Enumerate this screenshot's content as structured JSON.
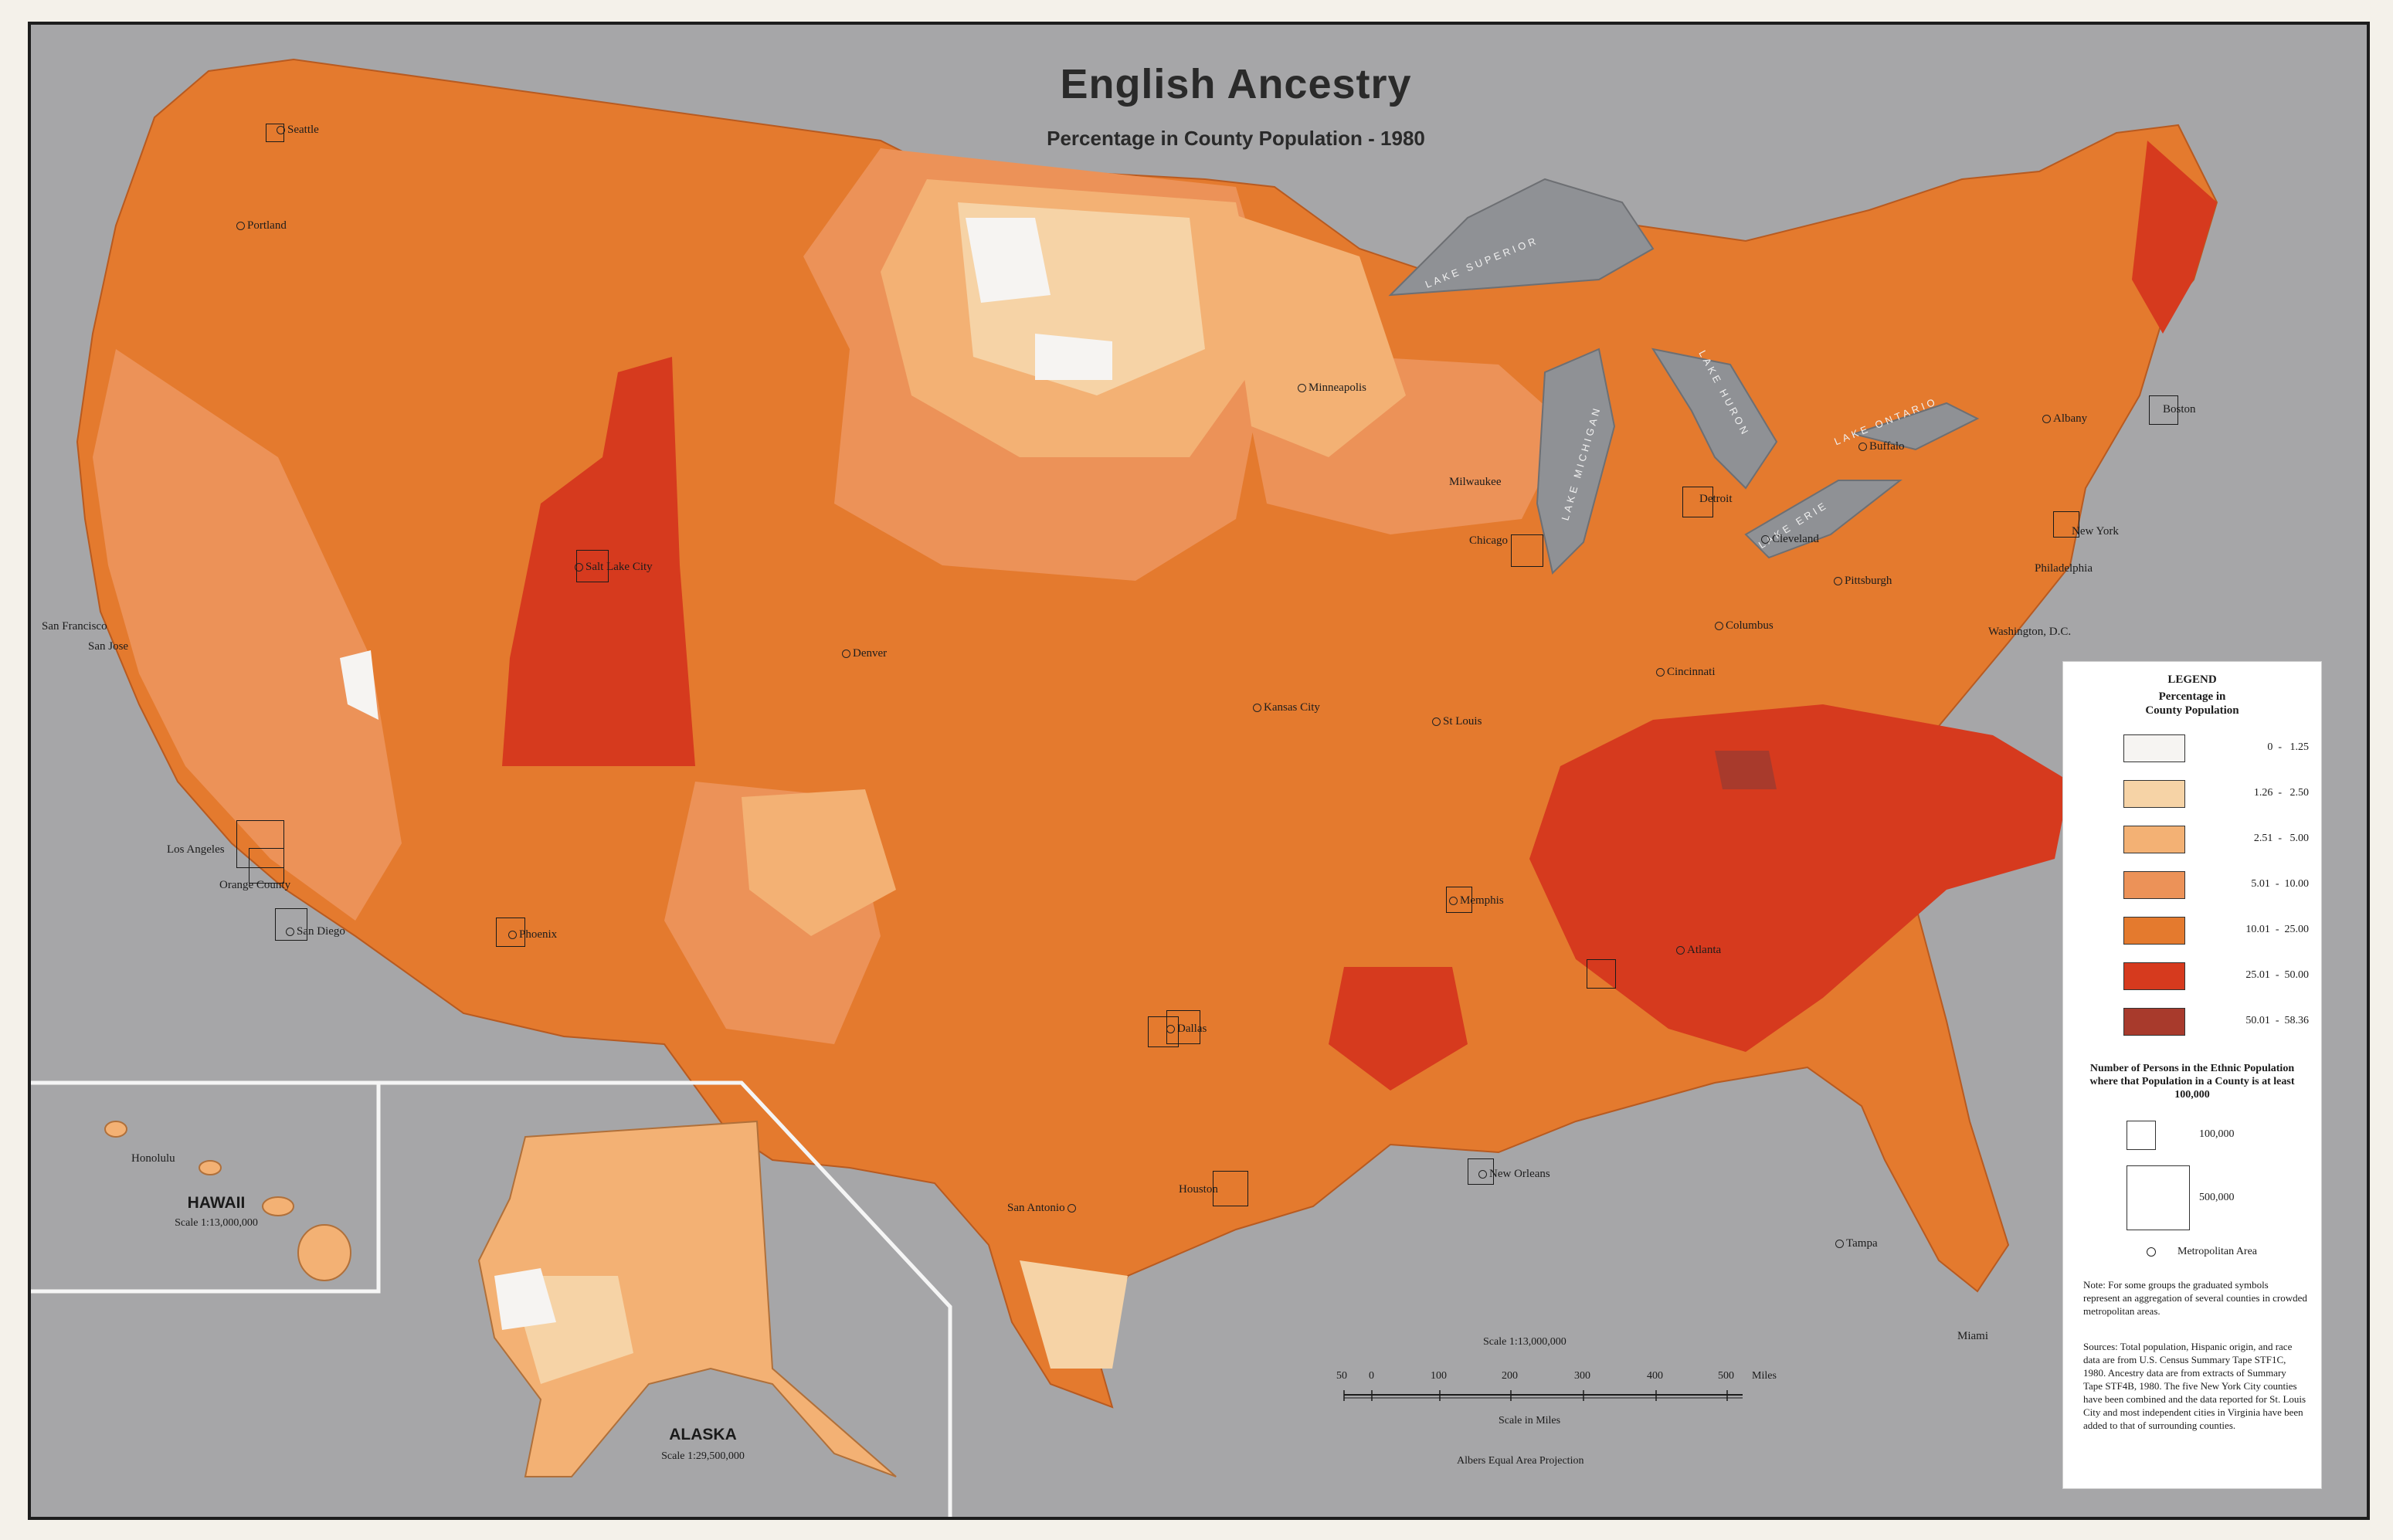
{
  "title": "English Ancestry",
  "subtitle": "Percentage in County Population - 1980",
  "colors": {
    "background": "#a6a6a8",
    "water": "#8f9195",
    "class_0_1_25": "#f6f4f2",
    "class_1_26_2_50": "#f6d3a6",
    "class_2_51_5_00": "#f3b174",
    "class_5_01_10_00": "#ec9258",
    "class_10_01_25_00": "#e47a2e",
    "class_25_01_50_00": "#d63a1e",
    "class_50_01_58_36": "#a83a2c"
  },
  "lakes": {
    "superior": "LAKE SUPERIOR",
    "michigan": "LAKE MICHIGAN",
    "huron": "LAKE HURON",
    "erie": "LAKE ERIE",
    "ontario": "LAKE ONTARIO"
  },
  "cities": {
    "seattle": "Seattle",
    "portland": "Portland",
    "san_francisco": "San Francisco",
    "san_jose": "San Jose",
    "los_angeles": "Los Angeles",
    "orange_county": "Orange County",
    "san_diego": "San Diego",
    "phoenix": "Phoenix",
    "salt_lake_city": "Salt Lake City",
    "denver": "Denver",
    "kansas_city": "Kansas City",
    "minneapolis": "Minneapolis",
    "milwaukee": "Milwaukee",
    "chicago": "Chicago",
    "st_louis": "St Louis",
    "detroit": "Detroit",
    "cleveland": "Cleveland",
    "pittsburgh": "Pittsburgh",
    "columbus": "Columbus",
    "cincinnati": "Cincinnati",
    "buffalo": "Buffalo",
    "albany": "Albany",
    "boston": "Boston",
    "new_york": "New York",
    "philadelphia": "Philadelphia",
    "washington": "Washington, D.C.",
    "memphis": "Memphis",
    "atlanta": "Atlanta",
    "dallas": "Dallas",
    "houston": "Houston",
    "san_antonio": "San Antonio",
    "new_orleans": "New Orleans",
    "tampa": "Tampa",
    "miami": "Miami",
    "honolulu": "Honolulu"
  },
  "hawaii": {
    "title": "HAWAII",
    "scale": "Scale  1:13,000,000"
  },
  "alaska": {
    "title": "ALASKA",
    "scale": "Scale  1:29,500,000"
  },
  "legend": {
    "heading": "LEGEND",
    "subheading": "Percentage in\nCounty Population",
    "classes": [
      {
        "range": "0  -   1.25",
        "color": "#f6f4f2"
      },
      {
        "range": "1.26  -   2.50",
        "color": "#f6d3a6"
      },
      {
        "range": "2.51  -   5.00",
        "color": "#f3b174"
      },
      {
        "range": "5.01  -  10.00",
        "color": "#ec9258"
      },
      {
        "range": "10.01  -  25.00",
        "color": "#e47a2e"
      },
      {
        "range": "25.01  -  50.00",
        "color": "#d63a1e"
      },
      {
        "range": "50.01  -  58.36",
        "color": "#a83a2c"
      }
    ],
    "persons_heading": "Number of Persons in the Ethnic Population where that Population in a County is at least 100,000",
    "size_small": "100,000",
    "size_large": "500,000",
    "metro_label": "Metropolitan Area",
    "note": "Note:    For some groups the graduated symbols represent an aggregation of several counties in crowded metropolitan areas.",
    "sources": "Sources:    Total population, Hispanic origin, and race data are from U.S. Census Summary Tape STF1C, 1980. Ancestry data are from extracts of Summary Tape STF4B, 1980. The five New York City counties have been combined and the data reported for St. Louis City and most independent cities in Virginia have been added to that of surrounding counties."
  },
  "scale_bar": {
    "scale_text": "Scale 1:13,000,000",
    "ticks": [
      "50",
      "0",
      "100",
      "200",
      "300",
      "400",
      "500"
    ],
    "unit": "Miles",
    "caption": "Scale in Miles",
    "projection": "Albers Equal Area Projection"
  }
}
